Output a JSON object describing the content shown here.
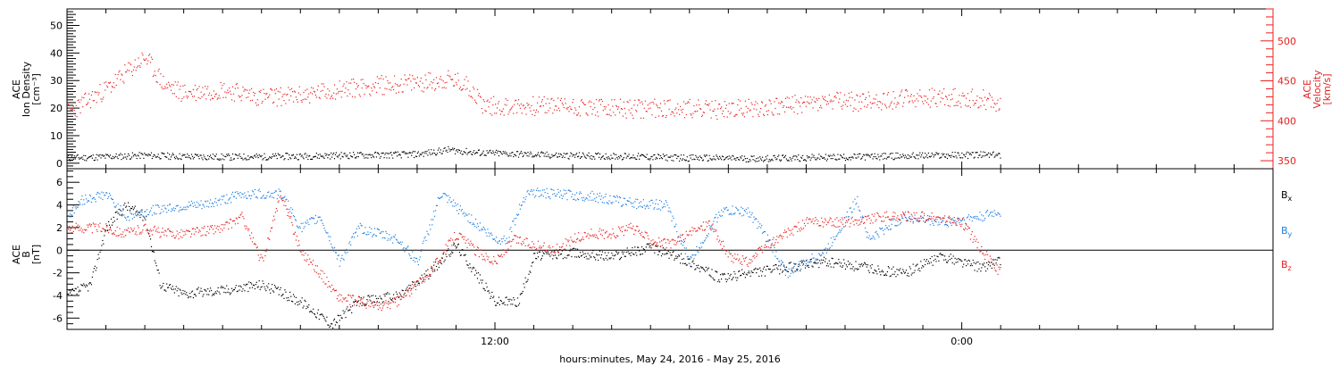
{
  "chart_data": [
    {
      "type": "scatter",
      "xlabel": "hours:minutes, May 24, 2016 - May 25, 2016",
      "x_tick_labels": [
        {
          "hour": 12,
          "label": "12:00"
        },
        {
          "hour": 24,
          "label": "0:00"
        }
      ],
      "xlim_hours": [
        1,
        32
      ],
      "left_axis": {
        "label_lines": [
          "ACE",
          "Ion Density",
          "[cm⁻³]"
        ],
        "ylim": [
          -2,
          56
        ],
        "ticks": [
          0,
          10,
          20,
          30,
          40,
          50
        ],
        "color": "#000000"
      },
      "right_axis": {
        "label_lines": [
          "ACE",
          "Velocity",
          "[km/s]"
        ],
        "ylim": [
          340,
          540
        ],
        "ticks": [
          350,
          400,
          450,
          500
        ],
        "color": "#e8201e"
      },
      "series": [
        {
          "axis": "left",
          "color": "#000000",
          "points": [
            [
              1.0,
              2
            ],
            [
              2.0,
              2.5
            ],
            [
              3.0,
              3
            ],
            [
              4.0,
              2.6
            ],
            [
              5.0,
              2.4
            ],
            [
              6.0,
              2.5
            ],
            [
              7.0,
              2.7
            ],
            [
              8.0,
              3
            ],
            [
              9.0,
              3.1
            ],
            [
              10.0,
              3.4
            ],
            [
              10.8,
              5
            ],
            [
              11.5,
              4
            ],
            [
              12.5,
              3.5
            ],
            [
              13.5,
              3
            ],
            [
              14.5,
              2.8
            ],
            [
              15.5,
              2.6
            ],
            [
              16.5,
              2.2
            ],
            [
              17.5,
              2
            ],
            [
              18.5,
              1.8
            ],
            [
              19.5,
              2
            ],
            [
              20.5,
              2.3
            ],
            [
              21.5,
              2.5
            ],
            [
              22.5,
              2.8
            ],
            [
              23.5,
              3
            ],
            [
              24.5,
              3.2
            ],
            [
              25.0,
              3
            ]
          ]
        },
        {
          "axis": "right",
          "color": "#e8201e",
          "points": [
            [
              1.0,
              410
            ],
            [
              1.5,
              425
            ],
            [
              2.0,
              440
            ],
            [
              2.5,
              460
            ],
            [
              3.0,
              480
            ],
            [
              3.5,
              445
            ],
            [
              4.0,
              435
            ],
            [
              5.0,
              440
            ],
            [
              6.0,
              430
            ],
            [
              7.0,
              432
            ],
            [
              8.0,
              440
            ],
            [
              9.0,
              445
            ],
            [
              10.0,
              448
            ],
            [
              10.8,
              452
            ],
            [
              11.3,
              445
            ],
            [
              11.7,
              420
            ],
            [
              12.5,
              418
            ],
            [
              13.5,
              420
            ],
            [
              14.5,
              417
            ],
            [
              15.5,
              415
            ],
            [
              16.5,
              417
            ],
            [
              17.5,
              414
            ],
            [
              18.5,
              416
            ],
            [
              19.5,
              420
            ],
            [
              20.5,
              424
            ],
            [
              21.5,
              425
            ],
            [
              22.5,
              428
            ],
            [
              23.5,
              430
            ],
            [
              24.5,
              428
            ],
            [
              25.0,
              422
            ]
          ]
        }
      ]
    },
    {
      "type": "scatter",
      "left_axis": {
        "label_lines": [
          "ACE",
          "B",
          "[nT]"
        ],
        "ylim": [
          -7,
          7.2
        ],
        "ticks": [
          -6,
          -4,
          -2,
          0,
          2,
          4,
          6
        ]
      },
      "legend": [
        "Bx",
        "By",
        "Bz"
      ],
      "series": [
        {
          "name": "Bx",
          "color": "#000000",
          "points": [
            [
              1.0,
              -4
            ],
            [
              1.6,
              -3
            ],
            [
              2.0,
              2
            ],
            [
              2.5,
              4
            ],
            [
              3.0,
              3
            ],
            [
              3.4,
              -3
            ],
            [
              4.0,
              -3.8
            ],
            [
              5.0,
              -3.5
            ],
            [
              6.0,
              -3
            ],
            [
              7.0,
              -4.5
            ],
            [
              7.8,
              -6.5
            ],
            [
              8.5,
              -4.5
            ],
            [
              9.5,
              -4
            ],
            [
              10.3,
              -2
            ],
            [
              11.0,
              0.5
            ],
            [
              11.5,
              -2
            ],
            [
              12.0,
              -4.5
            ],
            [
              12.6,
              -4.5
            ],
            [
              13.0,
              -0.5
            ],
            [
              14.0,
              -0.2
            ],
            [
              15.0,
              -0.5
            ],
            [
              16.0,
              0.3
            ],
            [
              17.0,
              -1
            ],
            [
              17.8,
              -2.5
            ],
            [
              18.5,
              -2
            ],
            [
              19.5,
              -1.5
            ],
            [
              20.5,
              -1
            ],
            [
              21.5,
              -1.5
            ],
            [
              22.5,
              -2
            ],
            [
              23.5,
              -0.5
            ],
            [
              24.5,
              -1.5
            ],
            [
              25.0,
              -0.8
            ]
          ]
        },
        {
          "name": "By",
          "color": "#1e7fe0",
          "points": [
            [
              1.0,
              3
            ],
            [
              1.4,
              4.5
            ],
            [
              2.0,
              5
            ],
            [
              2.5,
              3
            ],
            [
              3.5,
              3.8
            ],
            [
              4.5,
              4
            ],
            [
              5.5,
              5
            ],
            [
              6.5,
              5
            ],
            [
              7.0,
              2
            ],
            [
              7.5,
              3
            ],
            [
              8.0,
              -1
            ],
            [
              8.5,
              2
            ],
            [
              9.5,
              1
            ],
            [
              10.0,
              -1
            ],
            [
              10.6,
              5
            ],
            [
              11.3,
              3
            ],
            [
              12.0,
              1
            ],
            [
              12.3,
              1
            ],
            [
              12.8,
              5.2
            ],
            [
              13.5,
              5
            ],
            [
              14.5,
              4.8
            ],
            [
              15.5,
              4.2
            ],
            [
              16.4,
              4
            ],
            [
              17.0,
              -1
            ],
            [
              17.8,
              3.5
            ],
            [
              18.5,
              3.5
            ],
            [
              19.0,
              1
            ],
            [
              19.5,
              -2
            ],
            [
              20.5,
              0
            ],
            [
              21.3,
              4.5
            ],
            [
              21.6,
              1
            ],
            [
              22.5,
              3
            ],
            [
              23.5,
              2.5
            ],
            [
              24.5,
              3
            ],
            [
              25.0,
              3.5
            ]
          ]
        },
        {
          "name": "Bz",
          "color": "#e8201e",
          "points": [
            [
              1.0,
              2
            ],
            [
              2.0,
              2
            ],
            [
              2.5,
              1.5
            ],
            [
              3.0,
              2
            ],
            [
              3.5,
              1.5
            ],
            [
              4.0,
              1.5
            ],
            [
              5.0,
              2
            ],
            [
              5.5,
              3
            ],
            [
              6.0,
              -1
            ],
            [
              6.5,
              5
            ],
            [
              7.0,
              0
            ],
            [
              7.5,
              -2
            ],
            [
              8.0,
              -4.2
            ],
            [
              8.5,
              -4.5
            ],
            [
              9.0,
              -5
            ],
            [
              9.5,
              -4.5
            ],
            [
              10.0,
              -3
            ],
            [
              10.5,
              -1
            ],
            [
              11.0,
              1.5
            ],
            [
              11.5,
              0
            ],
            [
              12.0,
              -1
            ],
            [
              12.5,
              1
            ],
            [
              13.0,
              0.5
            ],
            [
              13.5,
              0
            ],
            [
              14.0,
              1
            ],
            [
              14.5,
              1.5
            ],
            [
              15.0,
              1.5
            ],
            [
              15.5,
              2
            ],
            [
              16.0,
              1
            ],
            [
              16.5,
              0.5
            ],
            [
              17.0,
              1.5
            ],
            [
              17.5,
              2.5
            ],
            [
              18.0,
              -0.5
            ],
            [
              18.5,
              -1
            ],
            [
              19.0,
              0.5
            ],
            [
              19.5,
              1.5
            ],
            [
              20.0,
              2.5
            ],
            [
              21.0,
              2.5
            ],
            [
              22.0,
              3
            ],
            [
              23.0,
              3
            ],
            [
              24.0,
              2.5
            ],
            [
              24.5,
              0
            ],
            [
              25.0,
              -2
            ]
          ]
        }
      ]
    }
  ]
}
